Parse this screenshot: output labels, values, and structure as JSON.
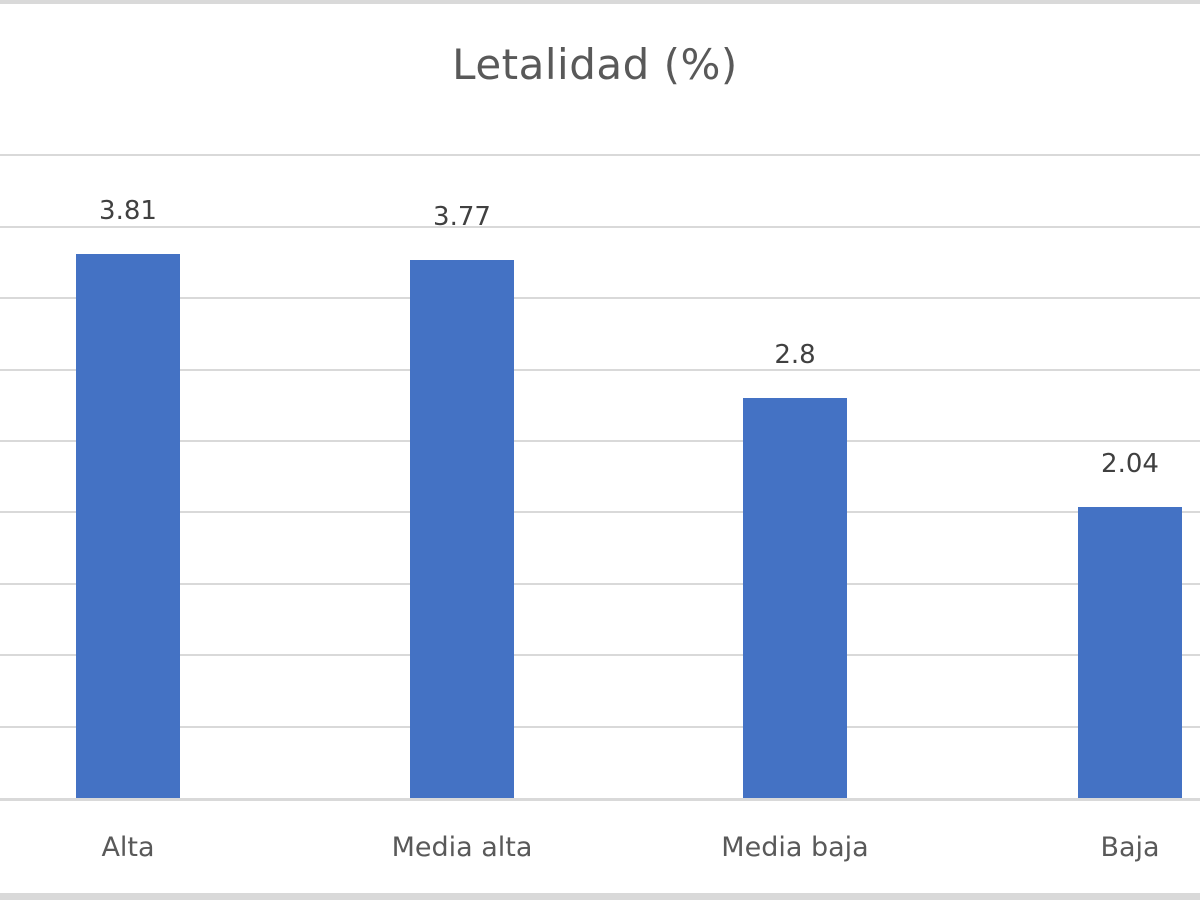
{
  "chart_data": {
    "type": "bar",
    "title": "Letalidad (%)",
    "categories": [
      "Alta",
      "Media alta",
      "Media baja",
      "Baja"
    ],
    "values": [
      3.81,
      3.77,
      2.8,
      2.04
    ],
    "value_labels": [
      "3.81",
      "3.77",
      "2.8",
      "2.04"
    ],
    "xlabel": "",
    "ylabel": "",
    "ylim": [
      0,
      4.5
    ],
    "gridlines": [
      0.5,
      1.0,
      1.5,
      2.0,
      2.5,
      3.0,
      3.5,
      4.0,
      4.5
    ],
    "grid": true,
    "legend": "none",
    "bar_color": "#4472C4"
  }
}
